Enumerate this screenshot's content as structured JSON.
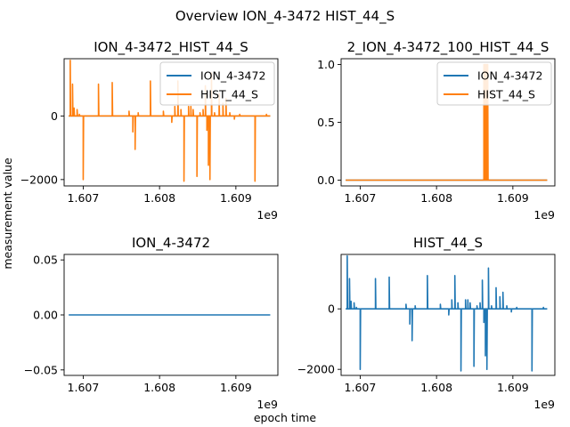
{
  "figure": {
    "suptitle": "Overview ION_4-3472 HIST_44_S",
    "xlabel": "epoch time",
    "ylabel": "measurement value",
    "exponent_label": "1e9"
  },
  "colors": {
    "blue": "#1f77b4",
    "orange": "#ff7f0e"
  },
  "chart_data": [
    {
      "type": "line",
      "title": "ION_4-3472_HIST_44_S",
      "xlim": [
        1.60675,
        1.60955
      ],
      "ylim": [
        -2200,
        1800
      ],
      "xticks": [
        1.607,
        1.608,
        1.609
      ],
      "xtick_labels": [
        "1.607",
        "1.608",
        "1.609"
      ],
      "yticks": [
        -2000,
        0
      ],
      "ytick_labels": [
        "−2000",
        "0"
      ],
      "legend": [
        "ION_4-3472",
        "HIST_44_S"
      ],
      "legend_position": "top-right",
      "series": [
        {
          "name": "ION_4-3472",
          "color": "blue",
          "x": [
            1.60681,
            1.60945
          ],
          "y": [
            0,
            0
          ]
        },
        {
          "name": "HIST_44_S",
          "color": "orange",
          "spikes": [
            [
              1.60683,
              1750
            ],
            [
              1.60686,
              1000
            ],
            [
              1.60688,
              250
            ],
            [
              1.60692,
              200
            ],
            [
              1.60695,
              50
            ],
            [
              1.607,
              -2000
            ],
            [
              1.6072,
              1000
            ],
            [
              1.60738,
              1050
            ],
            [
              1.6076,
              150
            ],
            [
              1.60765,
              -500
            ],
            [
              1.60768,
              -1050
            ],
            [
              1.60772,
              100
            ],
            [
              1.60788,
              1100
            ],
            [
              1.60805,
              150
            ],
            [
              1.60816,
              -200
            ],
            [
              1.6082,
              300
            ],
            [
              1.60824,
              1100
            ],
            [
              1.60828,
              200
            ],
            [
              1.60832,
              -2050
            ],
            [
              1.60838,
              300
            ],
            [
              1.60841,
              300
            ],
            [
              1.60844,
              200
            ],
            [
              1.60849,
              -1900
            ],
            [
              1.60853,
              100
            ],
            [
              1.60857,
              200
            ],
            [
              1.6086,
              950
            ],
            [
              1.60862,
              -450
            ],
            [
              1.60864,
              -1550
            ],
            [
              1.60866,
              -2000
            ],
            [
              1.60868,
              1350
            ],
            [
              1.60872,
              100
            ],
            [
              1.60878,
              700
            ],
            [
              1.60883,
              400
            ],
            [
              1.60887,
              550
            ],
            [
              1.60892,
              100
            ],
            [
              1.60898,
              -100
            ],
            [
              1.60905,
              50
            ],
            [
              1.60925,
              -2050
            ],
            [
              1.6094,
              50
            ]
          ]
        }
      ]
    },
    {
      "type": "line",
      "title": "2_ION_4-3472_100_HIST_44_S",
      "xlim": [
        1.60675,
        1.60955
      ],
      "ylim": [
        -0.05,
        1.05
      ],
      "xticks": [
        1.607,
        1.608,
        1.609
      ],
      "xtick_labels": [
        "1.607",
        "1.608",
        "1.609"
      ],
      "yticks": [
        0.0,
        0.5,
        1.0
      ],
      "ytick_labels": [
        "0.0",
        "0.5",
        "1.0"
      ],
      "legend": [
        "ION_4-3472",
        "HIST_44_S"
      ],
      "legend_position": "top-right",
      "series": [
        {
          "name": "ION_4-3472",
          "color": "blue",
          "x": [
            1.60681,
            1.60945
          ],
          "y": [
            0,
            0
          ]
        },
        {
          "name": "HIST_44_S",
          "color": "orange",
          "spikes": [
            [
              1.60862,
              1.0
            ],
            [
              1.60863,
              1.0
            ],
            [
              1.60864,
              1.0
            ],
            [
              1.60865,
              1.0
            ],
            [
              1.60866,
              1.0
            ],
            [
              1.60867,
              1.0
            ]
          ]
        }
      ]
    },
    {
      "type": "line",
      "title": "ION_4-3472",
      "xlim": [
        1.60675,
        1.60955
      ],
      "ylim": [
        -0.055,
        0.055
      ],
      "xticks": [
        1.607,
        1.608,
        1.609
      ],
      "xtick_labels": [
        "1.607",
        "1.608",
        "1.609"
      ],
      "yticks": [
        -0.05,
        0.0,
        0.05
      ],
      "ytick_labels": [
        "−0.05",
        "0.00",
        "0.05"
      ],
      "legend": [],
      "series": [
        {
          "name": "ION_4-3472",
          "color": "blue",
          "x": [
            1.60681,
            1.60945
          ],
          "y": [
            0,
            0
          ]
        }
      ]
    },
    {
      "type": "line",
      "title": "HIST_44_S",
      "xlim": [
        1.60675,
        1.60955
      ],
      "ylim": [
        -2200,
        1800
      ],
      "xticks": [
        1.607,
        1.608,
        1.609
      ],
      "xtick_labels": [
        "1.607",
        "1.608",
        "1.609"
      ],
      "yticks": [
        -2000,
        0
      ],
      "ytick_labels": [
        "−2000",
        "0"
      ],
      "legend": [],
      "series": [
        {
          "name": "HIST_44_S",
          "color": "blue",
          "spikes": [
            [
              1.60683,
              1750
            ],
            [
              1.60686,
              1000
            ],
            [
              1.60688,
              250
            ],
            [
              1.60692,
              200
            ],
            [
              1.60695,
              50
            ],
            [
              1.607,
              -2000
            ],
            [
              1.6072,
              1000
            ],
            [
              1.60738,
              1050
            ],
            [
              1.6076,
              150
            ],
            [
              1.60765,
              -500
            ],
            [
              1.60768,
              -1050
            ],
            [
              1.60772,
              100
            ],
            [
              1.60788,
              1100
            ],
            [
              1.60805,
              150
            ],
            [
              1.60816,
              -200
            ],
            [
              1.6082,
              300
            ],
            [
              1.60824,
              1100
            ],
            [
              1.60828,
              200
            ],
            [
              1.60832,
              -2050
            ],
            [
              1.60838,
              300
            ],
            [
              1.60841,
              300
            ],
            [
              1.60844,
              200
            ],
            [
              1.60849,
              -1900
            ],
            [
              1.60853,
              100
            ],
            [
              1.60857,
              200
            ],
            [
              1.6086,
              950
            ],
            [
              1.60862,
              -450
            ],
            [
              1.60864,
              -1550
            ],
            [
              1.60866,
              -2000
            ],
            [
              1.60868,
              1350
            ],
            [
              1.60872,
              100
            ],
            [
              1.60878,
              700
            ],
            [
              1.60883,
              400
            ],
            [
              1.60887,
              550
            ],
            [
              1.60892,
              100
            ],
            [
              1.60898,
              -100
            ],
            [
              1.60905,
              50
            ],
            [
              1.60925,
              -2050
            ],
            [
              1.6094,
              50
            ]
          ]
        }
      ]
    }
  ]
}
